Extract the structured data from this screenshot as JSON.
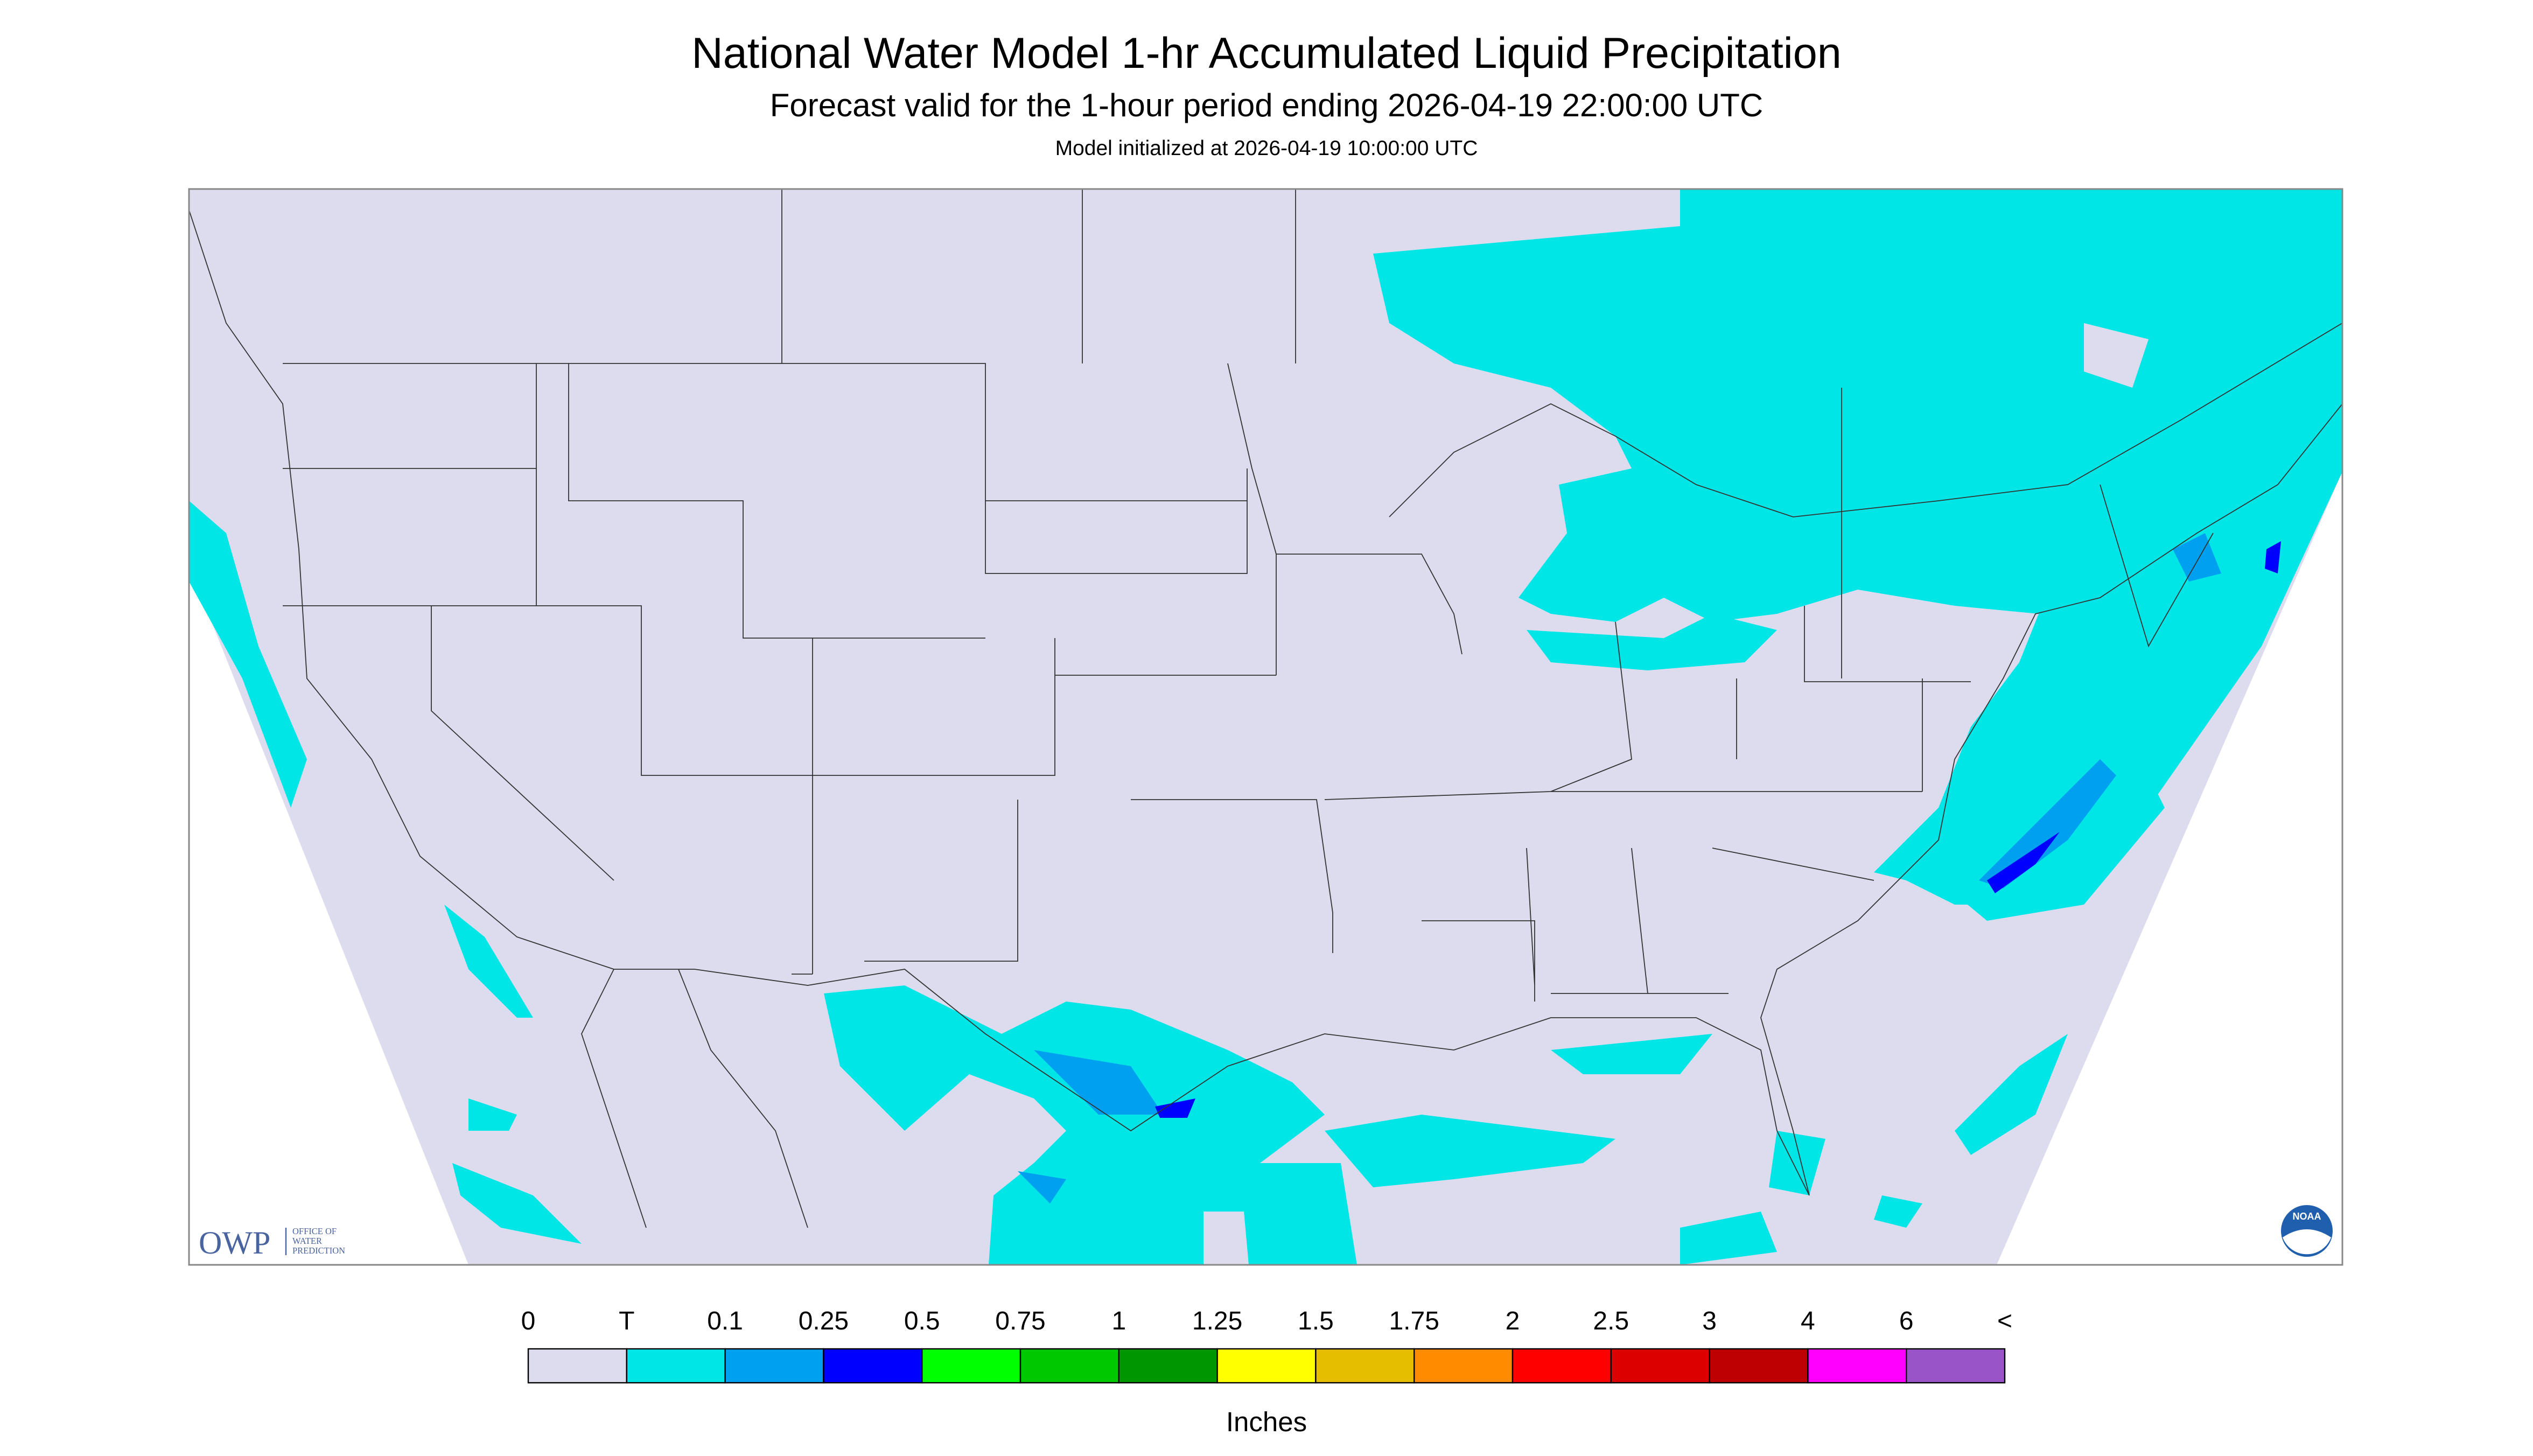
{
  "header": {
    "title": "National Water Model 1-hr Accumulated Liquid Precipitation",
    "subtitle": "Forecast valid for the 1-hour period ending 2026-04-19 22:00:00 UTC",
    "init": "Model initialized at 2026-04-19 10:00:00 UTC"
  },
  "logo": {
    "abbr": "OWP",
    "lines": [
      "OFFICE OF",
      "WATER",
      "PREDICTION"
    ],
    "noaa": "NOAA"
  },
  "legend": {
    "labels": [
      "0",
      "T",
      "0.1",
      "0.25",
      "0.5",
      "0.75",
      "1",
      "1.25",
      "1.5",
      "1.75",
      "2",
      "2.5",
      "3",
      "4",
      "6",
      "<"
    ],
    "colors": [
      "#dcdcee",
      "#00e6e6",
      "#00a0f0",
      "#0000ff",
      "#00ff00",
      "#00c800",
      "#009600",
      "#ffff00",
      "#e6be00",
      "#ff8c00",
      "#ff0000",
      "#dc0000",
      "#be0000",
      "#ff00ff",
      "#9955c8"
    ],
    "unit": "Inches"
  }
}
